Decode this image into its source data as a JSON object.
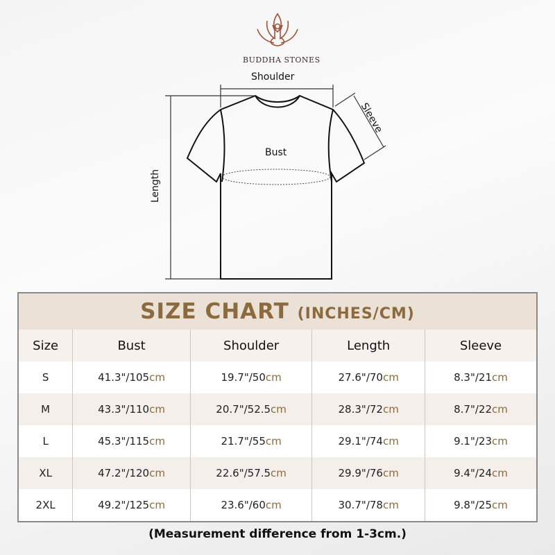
{
  "brand": {
    "name": "BUDDHA STONES",
    "logo_icon": "lotus-meditation-icon"
  },
  "diagram": {
    "shoulder": "Shoulder",
    "sleeve": "Sleeve",
    "bust": "Bust",
    "length": "Length"
  },
  "table": {
    "title": "SIZE CHART",
    "title_units": "(INCHES/CM)",
    "columns": [
      "Size",
      "Bust",
      "Shoulder",
      "Length",
      "Sleeve"
    ],
    "rows": [
      {
        "size": "S",
        "cells": [
          [
            "41.3\"/105",
            "cm"
          ],
          [
            "19.7\"/50",
            "cm"
          ],
          [
            "27.6\"/70",
            "cm"
          ],
          [
            "8.3\"/21",
            "cm"
          ]
        ]
      },
      {
        "size": "M",
        "cells": [
          [
            "43.3\"/110",
            "cm"
          ],
          [
            "20.7\"/52.5",
            "cm"
          ],
          [
            "28.3\"/72",
            "cm"
          ],
          [
            "8.7\"/22",
            "cm"
          ]
        ]
      },
      {
        "size": "L",
        "cells": [
          [
            "45.3\"/115",
            "cm"
          ],
          [
            "21.7\"/55",
            "cm"
          ],
          [
            "29.1\"/74",
            "cm"
          ],
          [
            "9.1\"/23",
            "cm"
          ]
        ]
      },
      {
        "size": "XL",
        "cells": [
          [
            "47.2\"/120",
            "cm"
          ],
          [
            "22.6\"/57.5",
            "cm"
          ],
          [
            "29.9\"/76",
            "cm"
          ],
          [
            "9.4\"/24",
            "cm"
          ]
        ]
      },
      {
        "size": "2XL",
        "cells": [
          [
            "49.2\"/125",
            "cm"
          ],
          [
            "23.6\"/60",
            "cm"
          ],
          [
            "30.7\"/78",
            "cm"
          ],
          [
            "9.8\"/25",
            "cm"
          ]
        ]
      }
    ]
  },
  "note": "(Measurement difference from 1-3cm.)",
  "colors": {
    "accent": "#8b6a3e",
    "title_bg": "#ebe1d7",
    "logo": "#a0523a"
  }
}
